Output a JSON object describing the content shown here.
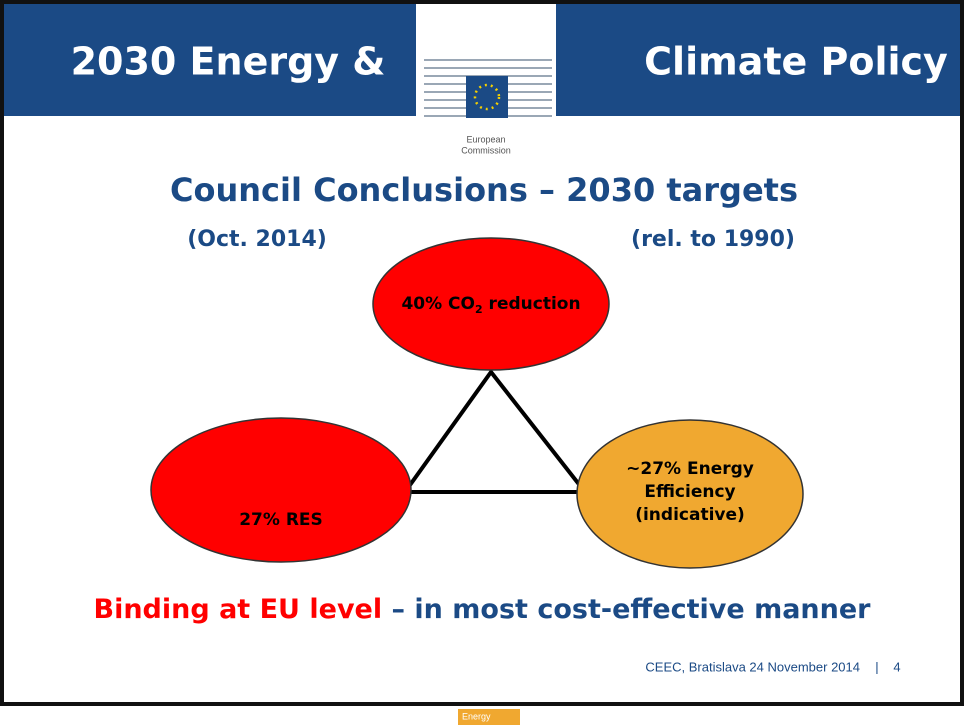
{
  "header": {
    "title_left": "2030 Energy &",
    "title_right": "Climate Policy",
    "logo_line1": "European",
    "logo_line2": "Commission"
  },
  "heading": "Council Conclusions – 2030 targets",
  "subheading_left": "(Oct. 2014)",
  "subheading_right": "(rel. to 1990)",
  "nodes": [
    {
      "label": "40% CO",
      "subscript": "2",
      "label_end": " reduction"
    },
    {
      "label": "27% RES"
    },
    {
      "lines": [
        "~27% Energy",
        "Efficiency",
        "(indicative)"
      ]
    }
  ],
  "conclusion": {
    "highlight": "Binding at EU level",
    "rest": " – in most cost-effective manner"
  },
  "footer": {
    "text": "CEEC, Bratislava 24 November 2014",
    "separator": "|",
    "page": "4",
    "tag": "Energy"
  }
}
